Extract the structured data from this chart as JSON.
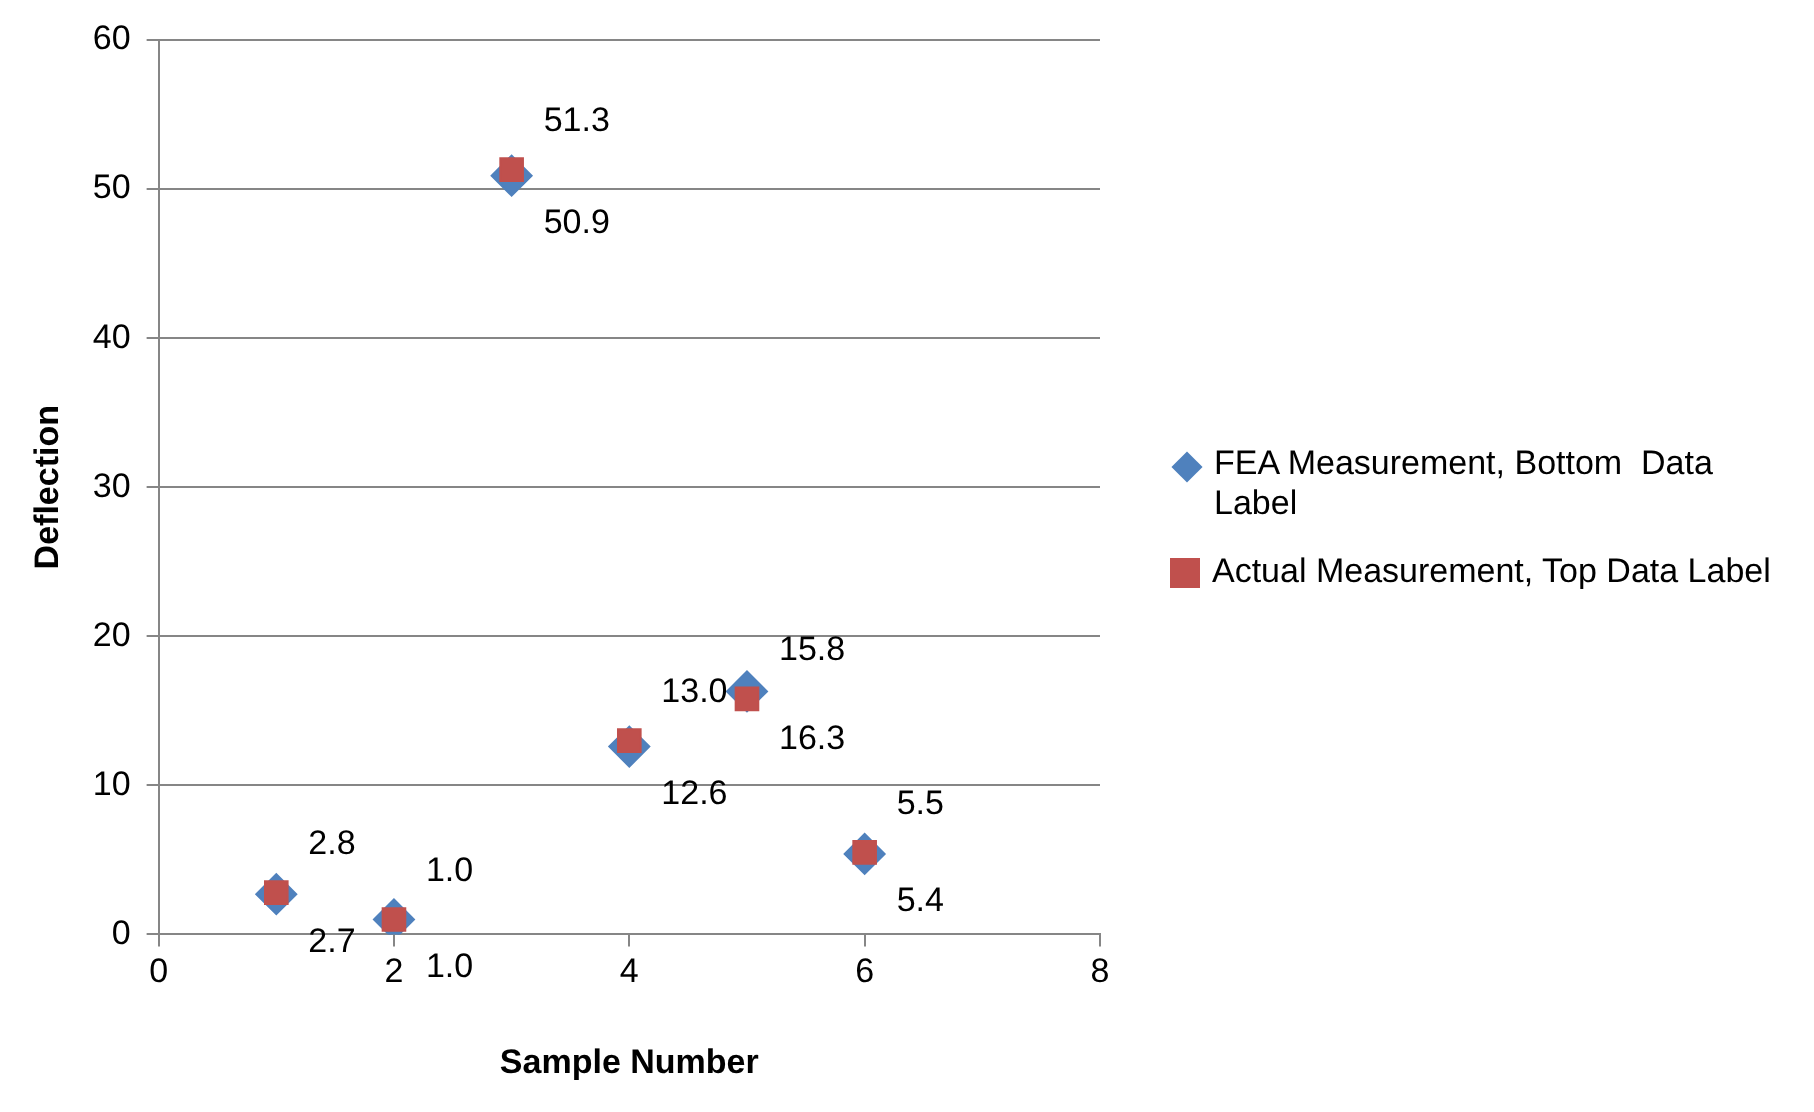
{
  "chart_data": {
    "type": "scatter",
    "xlabel": "Sample Number",
    "ylabel": "Deflection",
    "x": [
      1,
      2,
      3,
      4,
      5,
      6
    ],
    "series": [
      {
        "name": "FEA Measurement, Bottom  Data Label",
        "color": "#4f81bd",
        "marker": "diamond",
        "values": [
          2.7,
          1.0,
          50.9,
          12.6,
          16.3,
          5.4
        ],
        "value_labels": [
          "2.7",
          "1.0",
          "50.9",
          "12.6",
          "16.3",
          "5.4"
        ]
      },
      {
        "name": "Actual Measurement, Top Data Label",
        "color": "#c0504d",
        "marker": "square",
        "values": [
          2.8,
          1.0,
          51.3,
          13.0,
          15.8,
          5.5
        ],
        "value_labels": [
          "2.8",
          "1.0",
          "51.3",
          "13.0",
          "15.8",
          "5.5"
        ]
      }
    ],
    "xlim": [
      0,
      8
    ],
    "xticks": [
      0,
      2,
      4,
      6,
      8
    ],
    "ylim": [
      0,
      60
    ],
    "yticks": [
      0,
      10,
      20,
      30,
      40,
      50,
      60
    ],
    "grid": "y",
    "legend": "right"
  }
}
